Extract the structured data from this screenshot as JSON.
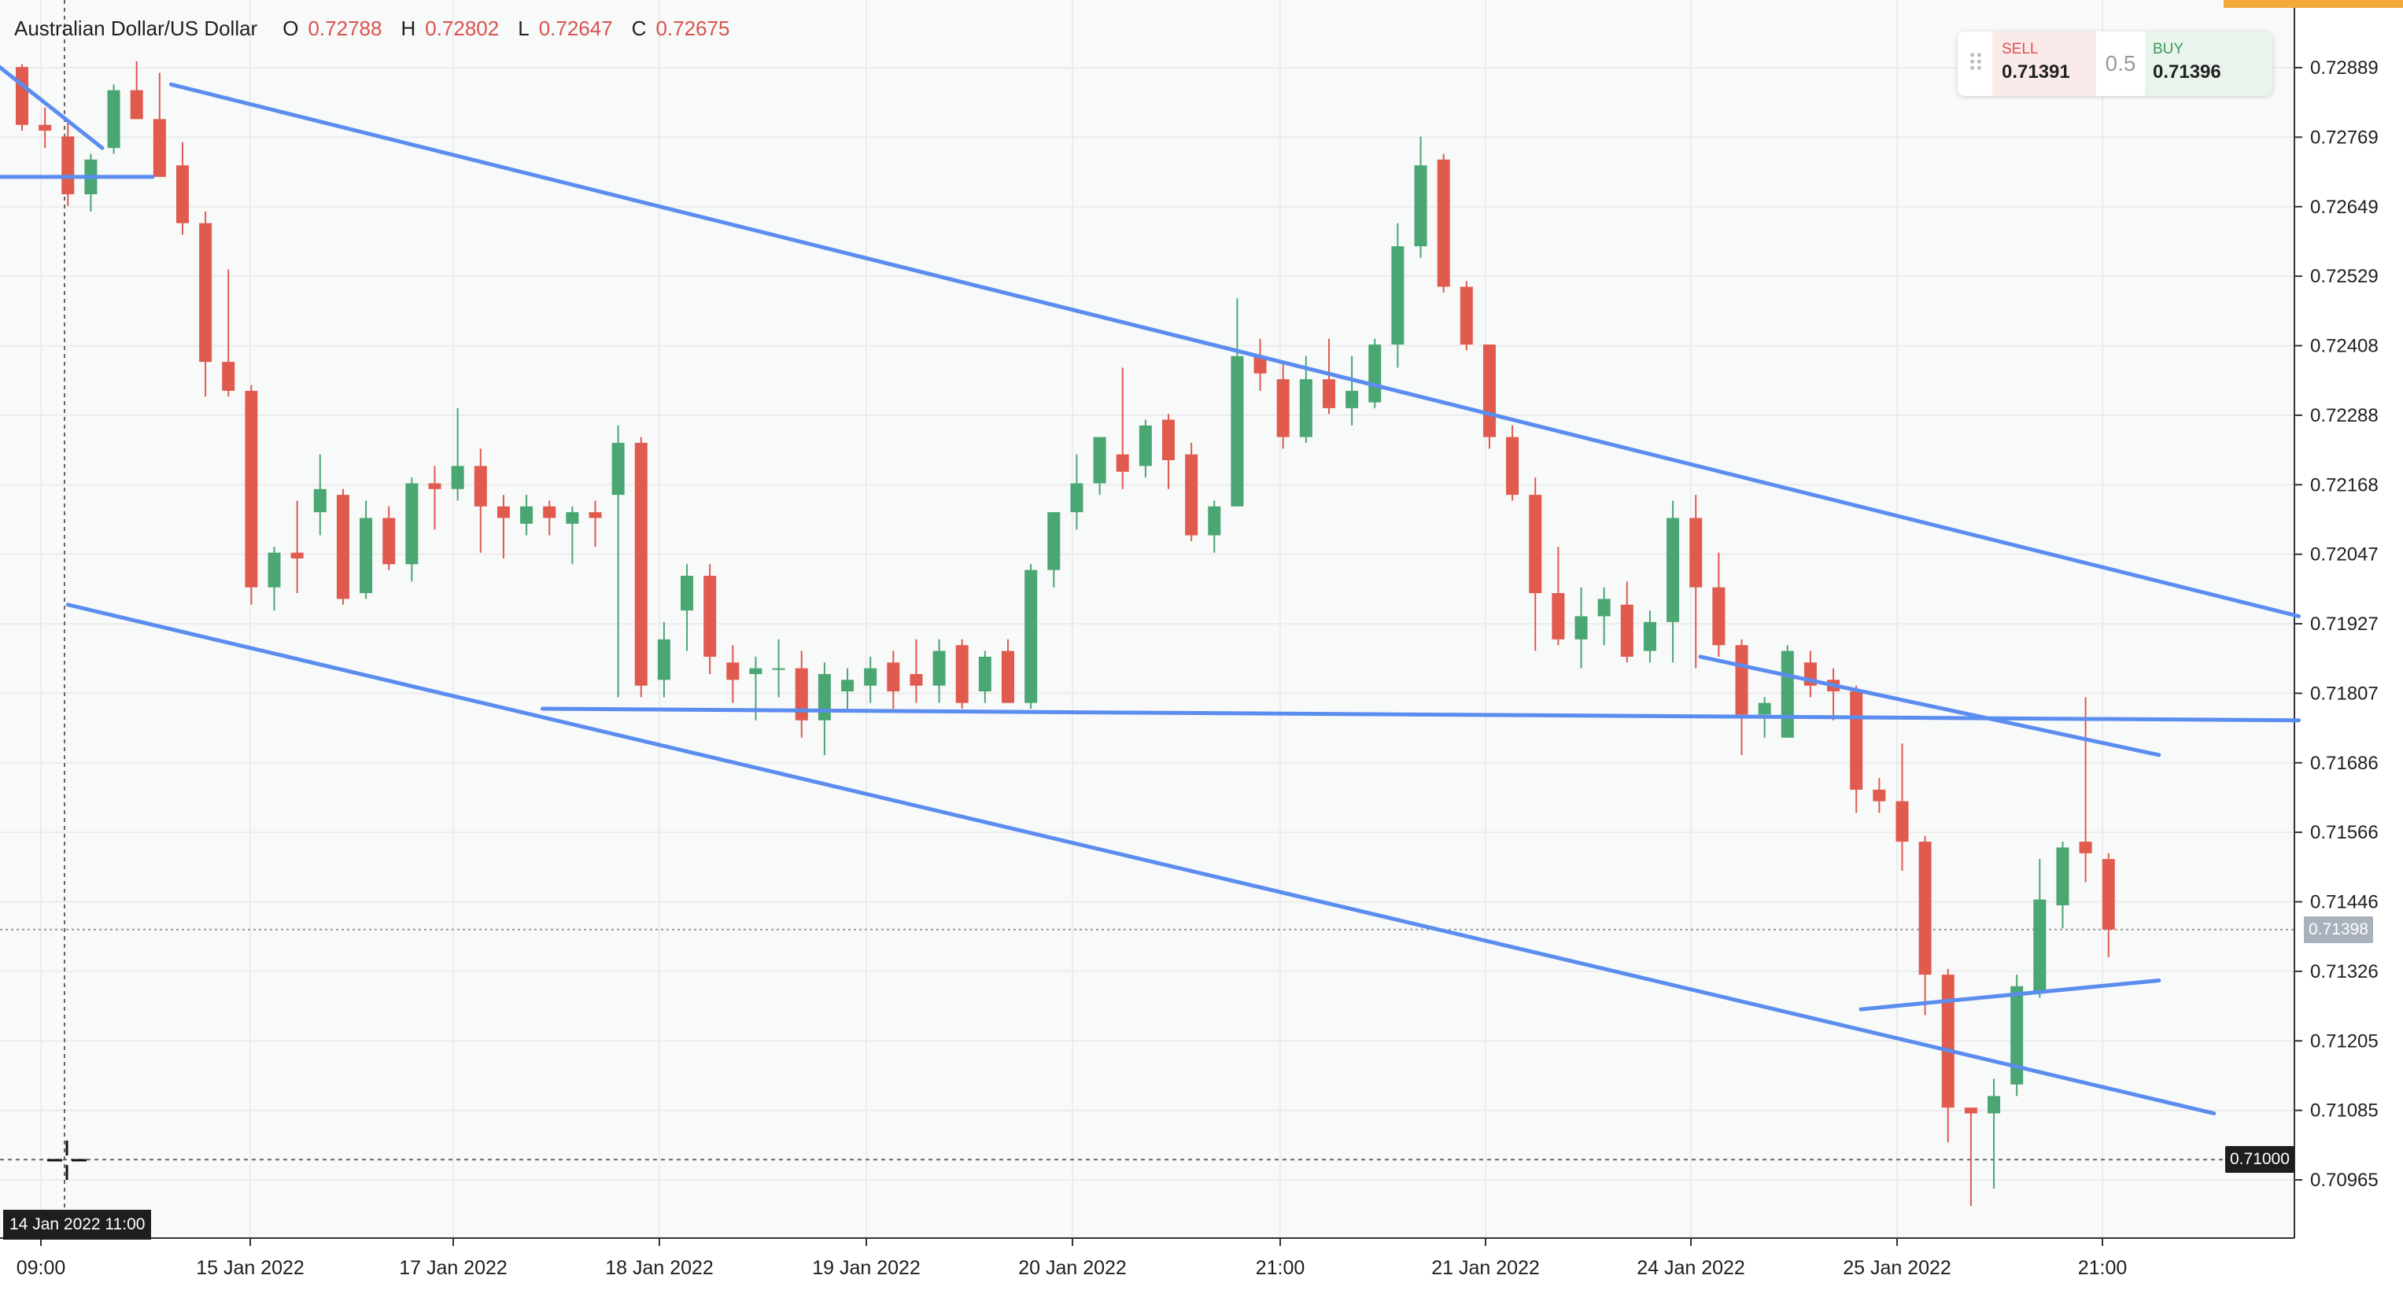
{
  "instrument": {
    "name": "Australian Dollar/US Dollar",
    "open_label": "O",
    "open": "0.72788",
    "high_label": "H",
    "high": "0.72802",
    "low_label": "L",
    "low": "0.72647",
    "close_label": "C",
    "close": "0.72675"
  },
  "trade_widget": {
    "sell_label": "SELL",
    "sell_price": "0.71391",
    "spread": "0.5",
    "buy_label": "BUY",
    "buy_price": "0.71396"
  },
  "current_price_label": "0.71398",
  "crosshair_price_label": "0.71000",
  "crosshair_time_label": "14 Jan 2022 11:00",
  "colors": {
    "up": "#4aa672",
    "down": "#e05a4e",
    "trendline": "#5b8def",
    "grid": "#ececec",
    "price_badge": "#a9b1bd",
    "crosshair_badge": "#1e1e1e"
  },
  "chart_data": {
    "type": "candlestick",
    "title": "Australian Dollar/US Dollar",
    "y_ticks": [
      "0.72889",
      "0.72769",
      "0.72649",
      "0.72529",
      "0.72408",
      "0.72288",
      "0.72168",
      "0.72047",
      "0.71927",
      "0.71807",
      "0.71686",
      "0.71566",
      "0.71446",
      "0.71326",
      "0.71205",
      "0.71085",
      "0.70965"
    ],
    "x_ticks": [
      "09:00",
      "15 Jan 2022",
      "17 Jan 2022",
      "18 Jan 2022",
      "19 Jan 2022",
      "20 Jan 2022",
      "21:00",
      "21 Jan 2022",
      "24 Jan 2022",
      "25 Jan 2022",
      "21:00"
    ],
    "ylim": [
      0.7092,
      0.73
    ],
    "grid": true,
    "candles": [
      {
        "o": 0.7289,
        "h": 0.72895,
        "l": 0.7278,
        "c": 0.7279
      },
      {
        "o": 0.7279,
        "h": 0.7282,
        "l": 0.7275,
        "c": 0.7278
      },
      {
        "o": 0.7277,
        "h": 0.728,
        "l": 0.7265,
        "c": 0.7267
      },
      {
        "o": 0.7267,
        "h": 0.7274,
        "l": 0.7264,
        "c": 0.7273
      },
      {
        "o": 0.7275,
        "h": 0.7286,
        "l": 0.7274,
        "c": 0.7285
      },
      {
        "o": 0.7285,
        "h": 0.729,
        "l": 0.728,
        "c": 0.728
      },
      {
        "o": 0.728,
        "h": 0.7288,
        "l": 0.727,
        "c": 0.727
      },
      {
        "o": 0.7272,
        "h": 0.7276,
        "l": 0.726,
        "c": 0.7262
      },
      {
        "o": 0.7262,
        "h": 0.7264,
        "l": 0.7232,
        "c": 0.7238
      },
      {
        "o": 0.7238,
        "h": 0.7254,
        "l": 0.7232,
        "c": 0.7233
      },
      {
        "o": 0.7233,
        "h": 0.7234,
        "l": 0.7196,
        "c": 0.7199
      },
      {
        "o": 0.7199,
        "h": 0.7206,
        "l": 0.7195,
        "c": 0.7205
      },
      {
        "o": 0.7205,
        "h": 0.7214,
        "l": 0.7198,
        "c": 0.7204
      },
      {
        "o": 0.7212,
        "h": 0.7222,
        "l": 0.7208,
        "c": 0.7216
      },
      {
        "o": 0.7215,
        "h": 0.7216,
        "l": 0.7196,
        "c": 0.7197
      },
      {
        "o": 0.7198,
        "h": 0.7214,
        "l": 0.7197,
        "c": 0.7211
      },
      {
        "o": 0.7211,
        "h": 0.7213,
        "l": 0.7202,
        "c": 0.7203
      },
      {
        "o": 0.7203,
        "h": 0.7218,
        "l": 0.72,
        "c": 0.7217
      },
      {
        "o": 0.7217,
        "h": 0.722,
        "l": 0.7209,
        "c": 0.7216
      },
      {
        "o": 0.7216,
        "h": 0.723,
        "l": 0.7214,
        "c": 0.722
      },
      {
        "o": 0.722,
        "h": 0.7223,
        "l": 0.7205,
        "c": 0.7213
      },
      {
        "o": 0.7213,
        "h": 0.7215,
        "l": 0.7204,
        "c": 0.7211
      },
      {
        "o": 0.721,
        "h": 0.7215,
        "l": 0.7208,
        "c": 0.7213
      },
      {
        "o": 0.7213,
        "h": 0.7214,
        "l": 0.7208,
        "c": 0.7211
      },
      {
        "o": 0.721,
        "h": 0.7213,
        "l": 0.7203,
        "c": 0.7212
      },
      {
        "o": 0.7212,
        "h": 0.7214,
        "l": 0.7206,
        "c": 0.7211
      },
      {
        "o": 0.7215,
        "h": 0.7227,
        "l": 0.718,
        "c": 0.7224
      },
      {
        "o": 0.7224,
        "h": 0.7225,
        "l": 0.718,
        "c": 0.7182
      },
      {
        "o": 0.7183,
        "h": 0.7193,
        "l": 0.718,
        "c": 0.719
      },
      {
        "o": 0.7195,
        "h": 0.7203,
        "l": 0.7188,
        "c": 0.7201
      },
      {
        "o": 0.7201,
        "h": 0.7203,
        "l": 0.7184,
        "c": 0.7187
      },
      {
        "o": 0.7186,
        "h": 0.7189,
        "l": 0.7179,
        "c": 0.7183
      },
      {
        "o": 0.7184,
        "h": 0.7187,
        "l": 0.7176,
        "c": 0.7185
      },
      {
        "o": 0.7185,
        "h": 0.719,
        "l": 0.718,
        "c": 0.7185
      },
      {
        "o": 0.7185,
        "h": 0.7188,
        "l": 0.7173,
        "c": 0.7176
      },
      {
        "o": 0.7176,
        "h": 0.7186,
        "l": 0.717,
        "c": 0.7184
      },
      {
        "o": 0.7181,
        "h": 0.7185,
        "l": 0.7178,
        "c": 0.7183
      },
      {
        "o": 0.7182,
        "h": 0.7187,
        "l": 0.7179,
        "c": 0.7185
      },
      {
        "o": 0.7186,
        "h": 0.7188,
        "l": 0.7178,
        "c": 0.7181
      },
      {
        "o": 0.7184,
        "h": 0.719,
        "l": 0.7179,
        "c": 0.7182
      },
      {
        "o": 0.7182,
        "h": 0.719,
        "l": 0.7179,
        "c": 0.7188
      },
      {
        "o": 0.7189,
        "h": 0.719,
        "l": 0.7178,
        "c": 0.7179
      },
      {
        "o": 0.7181,
        "h": 0.7188,
        "l": 0.7179,
        "c": 0.7187
      },
      {
        "o": 0.7188,
        "h": 0.719,
        "l": 0.7179,
        "c": 0.7179
      },
      {
        "o": 0.7179,
        "h": 0.7203,
        "l": 0.7178,
        "c": 0.7202
      },
      {
        "o": 0.7202,
        "h": 0.7212,
        "l": 0.7199,
        "c": 0.7212
      },
      {
        "o": 0.7212,
        "h": 0.7222,
        "l": 0.7209,
        "c": 0.7217
      },
      {
        "o": 0.7217,
        "h": 0.7225,
        "l": 0.7215,
        "c": 0.7225
      },
      {
        "o": 0.7222,
        "h": 0.7237,
        "l": 0.7216,
        "c": 0.7219
      },
      {
        "o": 0.722,
        "h": 0.7228,
        "l": 0.7218,
        "c": 0.7227
      },
      {
        "o": 0.7228,
        "h": 0.7229,
        "l": 0.7216,
        "c": 0.7221
      },
      {
        "o": 0.7222,
        "h": 0.7224,
        "l": 0.7207,
        "c": 0.7208
      },
      {
        "o": 0.7208,
        "h": 0.7214,
        "l": 0.7205,
        "c": 0.7213
      },
      {
        "o": 0.7213,
        "h": 0.7249,
        "l": 0.7213,
        "c": 0.7239
      },
      {
        "o": 0.7239,
        "h": 0.7242,
        "l": 0.7233,
        "c": 0.7236
      },
      {
        "o": 0.7235,
        "h": 0.7238,
        "l": 0.7223,
        "c": 0.7225
      },
      {
        "o": 0.7225,
        "h": 0.7239,
        "l": 0.7224,
        "c": 0.7235
      },
      {
        "o": 0.7235,
        "h": 0.7242,
        "l": 0.7229,
        "c": 0.723
      },
      {
        "o": 0.723,
        "h": 0.7239,
        "l": 0.7227,
        "c": 0.7233
      },
      {
        "o": 0.7231,
        "h": 0.7242,
        "l": 0.723,
        "c": 0.7241
      },
      {
        "o": 0.7241,
        "h": 0.7262,
        "l": 0.7237,
        "c": 0.7258
      },
      {
        "o": 0.7258,
        "h": 0.7277,
        "l": 0.7256,
        "c": 0.7272
      },
      {
        "o": 0.7273,
        "h": 0.7274,
        "l": 0.725,
        "c": 0.7251
      },
      {
        "o": 0.7251,
        "h": 0.7252,
        "l": 0.724,
        "c": 0.7241
      },
      {
        "o": 0.7241,
        "h": 0.7241,
        "l": 0.7223,
        "c": 0.7225
      },
      {
        "o": 0.7225,
        "h": 0.7227,
        "l": 0.7214,
        "c": 0.7215
      },
      {
        "o": 0.7215,
        "h": 0.7218,
        "l": 0.7188,
        "c": 0.7198
      },
      {
        "o": 0.7198,
        "h": 0.7206,
        "l": 0.7189,
        "c": 0.719
      },
      {
        "o": 0.719,
        "h": 0.7199,
        "l": 0.7185,
        "c": 0.7194
      },
      {
        "o": 0.7194,
        "h": 0.7199,
        "l": 0.7189,
        "c": 0.7197
      },
      {
        "o": 0.7196,
        "h": 0.72,
        "l": 0.7186,
        "c": 0.7187
      },
      {
        "o": 0.7188,
        "h": 0.7195,
        "l": 0.7186,
        "c": 0.7193
      },
      {
        "o": 0.7193,
        "h": 0.7214,
        "l": 0.7186,
        "c": 0.7211
      },
      {
        "o": 0.7211,
        "h": 0.7215,
        "l": 0.7185,
        "c": 0.7199
      },
      {
        "o": 0.7199,
        "h": 0.7205,
        "l": 0.7187,
        "c": 0.7189
      },
      {
        "o": 0.7189,
        "h": 0.719,
        "l": 0.717,
        "c": 0.7177
      },
      {
        "o": 0.7177,
        "h": 0.718,
        "l": 0.7173,
        "c": 0.7179
      },
      {
        "o": 0.7173,
        "h": 0.7189,
        "l": 0.7173,
        "c": 0.7188
      },
      {
        "o": 0.7186,
        "h": 0.7188,
        "l": 0.718,
        "c": 0.7182
      },
      {
        "o": 0.7183,
        "h": 0.7185,
        "l": 0.7176,
        "c": 0.7181
      },
      {
        "o": 0.7181,
        "h": 0.7182,
        "l": 0.716,
        "c": 0.7164
      },
      {
        "o": 0.7164,
        "h": 0.7166,
        "l": 0.716,
        "c": 0.7162
      },
      {
        "o": 0.7162,
        "h": 0.7172,
        "l": 0.715,
        "c": 0.7155
      },
      {
        "o": 0.7155,
        "h": 0.7156,
        "l": 0.7125,
        "c": 0.7132
      },
      {
        "o": 0.7132,
        "h": 0.7133,
        "l": 0.7103,
        "c": 0.7109
      },
      {
        "o": 0.7109,
        "h": 0.7109,
        "l": 0.7092,
        "c": 0.7108
      },
      {
        "o": 0.7108,
        "h": 0.7114,
        "l": 0.7095,
        "c": 0.7111
      },
      {
        "o": 0.7113,
        "h": 0.7132,
        "l": 0.7111,
        "c": 0.713
      },
      {
        "o": 0.7129,
        "h": 0.7152,
        "l": 0.7128,
        "c": 0.7145
      },
      {
        "o": 0.7144,
        "h": 0.7155,
        "l": 0.714,
        "c": 0.7154
      },
      {
        "o": 0.7155,
        "h": 0.718,
        "l": 0.7148,
        "c": 0.7153
      },
      {
        "o": 0.7152,
        "h": 0.7153,
        "l": 0.7135,
        "c": 0.71398
      }
    ],
    "trendlines": [
      {
        "x1": 2.0,
        "y1": 0.7196,
        "x2": 95.6,
        "y2": 0.7108
      },
      {
        "x1": 6.5,
        "y1": 0.7286,
        "x2": 99.3,
        "y2": 0.7194
      },
      {
        "x1": 22.7,
        "y1": 0.7178,
        "x2": 99.3,
        "y2": 0.7176
      },
      {
        "x1": 73.2,
        "y1": 0.7187,
        "x2": 93.2,
        "y2": 0.717
      },
      {
        "x1": 80.2,
        "y1": 0.7126,
        "x2": 93.2,
        "y2": 0.7131
      },
      {
        "x1": -1.3,
        "y1": 0.729,
        "x2": 3.5,
        "y2": 0.7275
      },
      {
        "x1": -2.5,
        "y1": 0.727,
        "x2": 5.7,
        "y2": 0.727
      }
    ],
    "current_price": 0.71398,
    "crosshair_price": 0.71
  }
}
